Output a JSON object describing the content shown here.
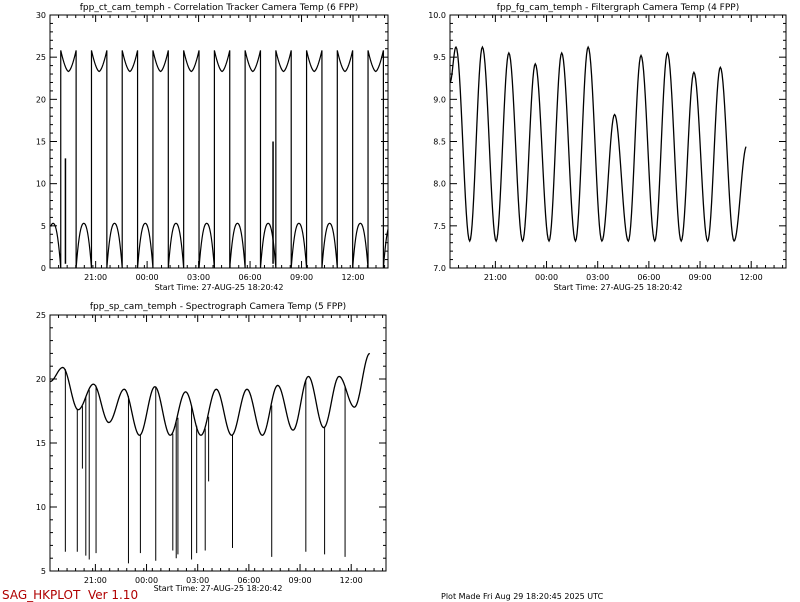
{
  "footer": {
    "program": "SAG_HKPLOT",
    "version": "Ver 1.10",
    "plot_made": "Plot Made Fri Aug 29 18:20:45 2025 UTC",
    "color": "#b00000"
  },
  "chart_data": [
    {
      "type": "line",
      "title": "fpp_ct_cam_temph - Correlation Tracker Camera Temp (6 FPP)",
      "xlabel": "Start Time: 27-AUG-25  18:20:42",
      "ylabel": "",
      "x_ticks": [
        "21:00",
        "00:00",
        "03:00",
        "06:00",
        "09:00",
        "12:00"
      ],
      "x_tick_hours": [
        2.66,
        5.66,
        8.66,
        11.66,
        14.66,
        17.66
      ],
      "xlim_hours": [
        0,
        19.7
      ],
      "ylim": [
        0,
        30
      ],
      "y_ticks": [
        "0",
        "5",
        "10",
        "15",
        "20",
        "25",
        "30"
      ],
      "grid": false,
      "series": [
        {
          "behavior": "switching between upper and lower level",
          "upper_level": {
            "min": 23.3,
            "max": 25.8
          },
          "lower_level": {
            "min": 0,
            "max": 5.3
          },
          "transitions": 22,
          "spikes": [
            13,
            15
          ]
        }
      ]
    },
    {
      "type": "line",
      "title": "fpp_fg_cam_temph - Filtergraph Camera Temp (4 FPP)",
      "xlabel": "Start Time: 27-AUG-25  18:20:42",
      "ylabel": "",
      "x_ticks": [
        "21:00",
        "00:00",
        "03:00",
        "06:00",
        "09:00",
        "12:00"
      ],
      "x_tick_hours": [
        2.66,
        5.66,
        8.66,
        11.66,
        14.66,
        17.66
      ],
      "xlim_hours": [
        0,
        19.7
      ],
      "ylim": [
        7.0,
        10.0
      ],
      "y_ticks": [
        "7.0",
        "7.5",
        "8.0",
        "8.5",
        "9.0",
        "9.5",
        "10.0"
      ],
      "grid": false,
      "series": [
        {
          "peaks": [
            9.62,
            9.62,
            9.55,
            9.42,
            9.55,
            9.62,
            8.82,
            9.52,
            9.55,
            9.32,
            9.38,
            8.45
          ],
          "troughs": [
            7.32,
            7.32,
            7.32,
            7.32,
            7.32,
            7.32,
            7.32,
            7.32,
            7.32,
            7.32,
            7.32
          ],
          "start_value": 9.2
        }
      ]
    },
    {
      "type": "line",
      "title": "fpp_sp_cam_temph - Spectrograph Camera Temp (5 FPP)",
      "xlabel": "Start Time: 27-AUG-25  18:20:42",
      "ylabel": "",
      "x_ticks": [
        "21:00",
        "00:00",
        "03:00",
        "06:00",
        "09:00",
        "12:00"
      ],
      "x_tick_hours": [
        2.66,
        5.66,
        8.66,
        11.66,
        14.66,
        17.66
      ],
      "xlim_hours": [
        0,
        19.7
      ],
      "ylim": [
        5,
        25
      ],
      "y_ticks": [
        "5",
        "10",
        "15",
        "20",
        "25"
      ],
      "grid": false,
      "series": [
        {
          "peaks": [
            20.9,
            19.6,
            19.2,
            19.4,
            19.0,
            19.2,
            19.2,
            19.5,
            20.2,
            20.2,
            22.0
          ],
          "troughs": [
            17.6,
            16.6,
            15.6,
            15.6,
            15.6,
            15.6,
            15.6,
            16.0,
            16.2,
            17.8
          ],
          "start_value": 19.8,
          "dropouts": [
            {
              "hour": 0.9,
              "value": 6.5
            },
            {
              "hour": 1.6,
              "value": 6.5
            },
            {
              "hour": 1.9,
              "value": 13.0
            },
            {
              "hour": 2.1,
              "value": 6.2
            },
            {
              "hour": 2.3,
              "value": 5.9
            },
            {
              "hour": 2.7,
              "value": 6.4
            },
            {
              "hour": 4.6,
              "value": 5.6
            },
            {
              "hour": 5.3,
              "value": 6.4
            },
            {
              "hour": 6.2,
              "value": 5.8
            },
            {
              "hour": 7.2,
              "value": 6.6
            },
            {
              "hour": 7.4,
              "value": 6.0
            },
            {
              "hour": 7.5,
              "value": 6.3
            },
            {
              "hour": 8.3,
              "value": 5.9
            },
            {
              "hour": 8.6,
              "value": 6.4
            },
            {
              "hour": 9.1,
              "value": 6.6
            },
            {
              "hour": 9.3,
              "value": 12.0
            },
            {
              "hour": 10.7,
              "value": 6.8
            },
            {
              "hour": 13.0,
              "value": 6.1
            },
            {
              "hour": 15.0,
              "value": 6.5
            },
            {
              "hour": 16.1,
              "value": 6.3
            },
            {
              "hour": 17.3,
              "value": 6.1
            }
          ]
        }
      ]
    }
  ]
}
